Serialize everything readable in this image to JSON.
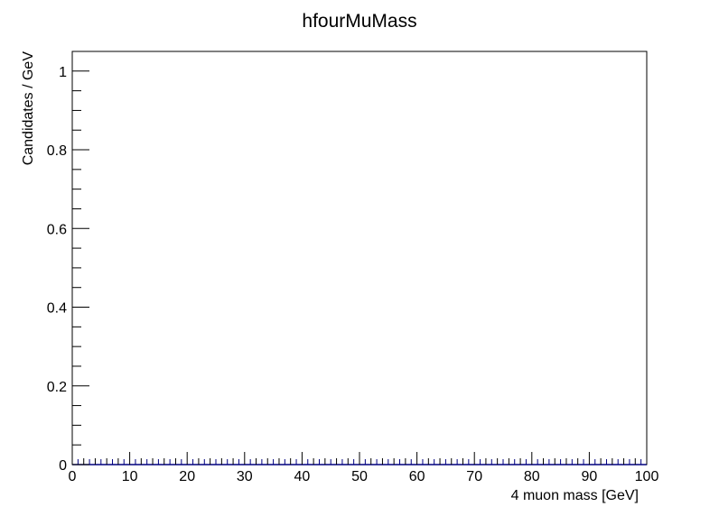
{
  "chart_data": {
    "type": "bar",
    "title": "hfourMuMass",
    "xlabel": "4 muon mass [GeV]",
    "ylabel": "Candidates / GeV",
    "xlim": [
      0,
      100
    ],
    "ylim": [
      0,
      1.05
    ],
    "x_major_ticks": [
      0,
      10,
      20,
      30,
      40,
      50,
      60,
      70,
      80,
      90,
      100
    ],
    "x_tick_labels": [
      "0",
      "10",
      "20",
      "30",
      "40",
      "50",
      "60",
      "70",
      "80",
      "90",
      "100"
    ],
    "x_minor_step": 2,
    "y_major_ticks": [
      0,
      0.2,
      0.4,
      0.6,
      0.8,
      1
    ],
    "y_tick_labels": [
      "0",
      "0.2",
      "0.4",
      "0.6",
      "0.8",
      "1"
    ],
    "y_minor_step": 0.05,
    "grid": false,
    "bin_width": 2,
    "bin_values": [
      0,
      0,
      0,
      0,
      0,
      0,
      0,
      0,
      0,
      0,
      0,
      0,
      0,
      0,
      0,
      0,
      0,
      0,
      0,
      0,
      0,
      0,
      0,
      0,
      0,
      0,
      0,
      0,
      0,
      0,
      0,
      0,
      0,
      0,
      0,
      0,
      0,
      0,
      0,
      0,
      0,
      0,
      0,
      0,
      0,
      0,
      0,
      0,
      0,
      0
    ],
    "colors": {
      "histogram": "#00007f",
      "axis": "#000000"
    }
  }
}
